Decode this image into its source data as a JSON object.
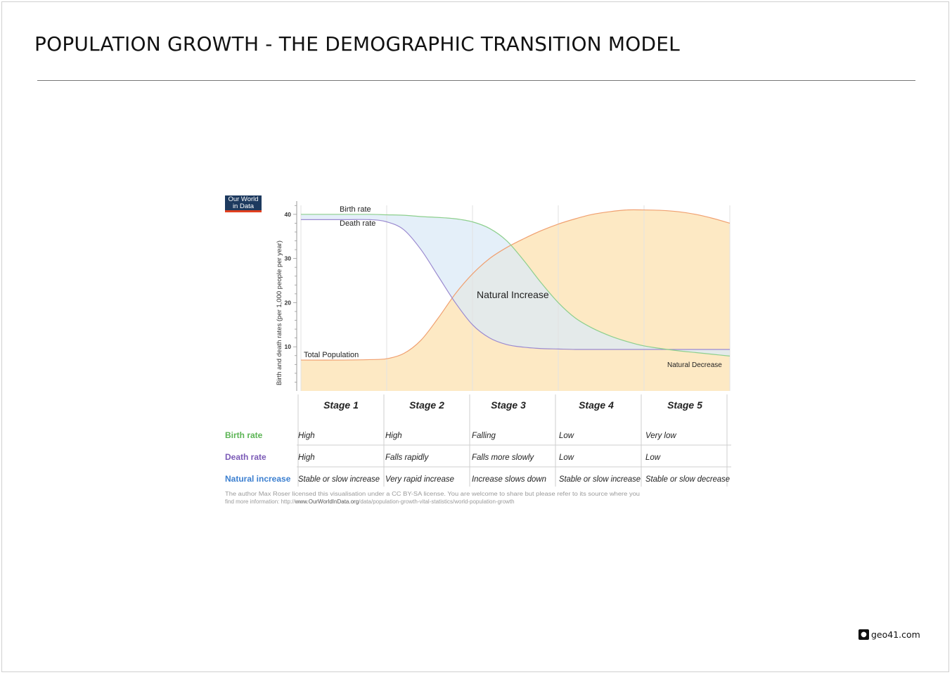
{
  "slide": {
    "title": "POPULATION GROWTH - THE DEMOGRAPHIC TRANSITION MODEL",
    "brand": "geo41.com",
    "brand_icon": "map-pin-icon"
  },
  "logo": {
    "line1": "Our World",
    "line2": "in Data"
  },
  "chart_data": {
    "type": "area",
    "title": "",
    "ylabel": "Birth and death rates (per 1,000 people per year)",
    "xlabel": "",
    "ylim": [
      0,
      43
    ],
    "xlim": [
      0,
      5
    ],
    "yticks": [
      10,
      20,
      30,
      40
    ],
    "categories": [
      "Stage 1",
      "Stage 2",
      "Stage 3",
      "Stage 4",
      "Stage 5"
    ],
    "x": [
      0,
      0.5,
      0.8,
      1.0,
      1.2,
      1.4,
      1.6,
      1.8,
      2.0,
      2.2,
      2.4,
      2.6,
      2.8,
      3.0,
      3.2,
      3.4,
      3.6,
      3.8,
      4.0,
      4.2,
      4.4,
      4.6,
      4.8,
      5.0
    ],
    "series": [
      {
        "name": "Birth rate",
        "color": "#8dcf8d",
        "values": [
          40,
          40,
          40,
          39.9,
          39.8,
          39.5,
          39.3,
          39.0,
          38.3,
          36.8,
          34.0,
          29.5,
          24.5,
          20.0,
          16.5,
          14.2,
          12.5,
          11.2,
          10.2,
          9.6,
          9.1,
          8.7,
          8.3,
          7.9
        ]
      },
      {
        "name": "Death rate",
        "color": "#9b8ad0",
        "values": [
          38.8,
          38.8,
          38.8,
          38.3,
          36.5,
          32.0,
          26.0,
          20.0,
          15.0,
          12.0,
          10.5,
          9.9,
          9.6,
          9.5,
          9.4,
          9.4,
          9.4,
          9.4,
          9.4,
          9.4,
          9.4,
          9.4,
          9.4,
          9.4
        ]
      },
      {
        "name": "Total Population",
        "color": "#f0a070",
        "fill": "#fde9c4",
        "values": [
          7,
          7,
          7.1,
          7.3,
          8.5,
          11.5,
          16.5,
          22.0,
          26.5,
          30.0,
          32.5,
          34.5,
          36.3,
          37.8,
          39.0,
          40.0,
          40.6,
          41.0,
          41.0,
          40.9,
          40.6,
          40.0,
          39.1,
          38.0
        ]
      }
    ],
    "annotations": [
      "Birth rate",
      "Death rate",
      "Total Population",
      "Natural Increase",
      "Natural Decrease"
    ],
    "legend": "none"
  },
  "table": {
    "stages": [
      "Stage 1",
      "Stage 2",
      "Stage 3",
      "Stage 4",
      "Stage 5"
    ],
    "rows": [
      {
        "label": "Birth rate",
        "color": "#5bb454",
        "cells": [
          "High",
          "High",
          "Falling",
          "Low",
          "Very low"
        ]
      },
      {
        "label": "Death rate",
        "color": "#7b5ab7",
        "cells": [
          "High",
          "Falls rapidly",
          "Falls more slowly",
          "Low",
          "Low"
        ]
      },
      {
        "label": "Natural increase",
        "color": "#3b7fd0",
        "cells": [
          "Stable or slow increase",
          "Very rapid increase",
          "Increase slows down",
          "Stable or slow increase",
          "Stable or slow decrease"
        ]
      }
    ]
  },
  "credit": {
    "line1": "The author Max Roser licensed this visualisation under a CC BY-SA license. You are welcome to share but please refer to its source where you",
    "line2_pre": "find more information: http://",
    "line2_bold": "www.OurWorldInData.org",
    "line2_post": "/data/population-growth-vital-statistics/world-population-growth"
  }
}
